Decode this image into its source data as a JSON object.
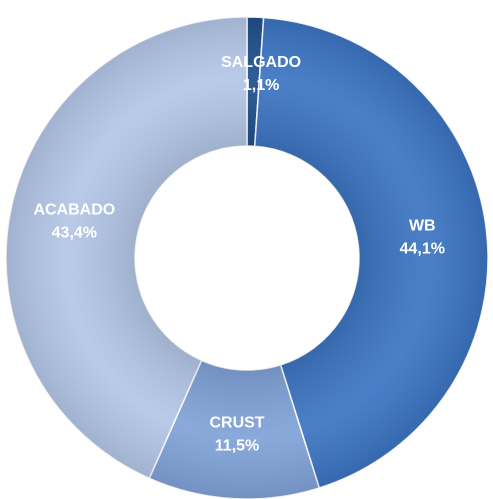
{
  "chart_data": {
    "type": "donut",
    "categories": [
      "SALGADO",
      "WB",
      "CRUST",
      "ACABADO"
    ],
    "values": [
      1.1,
      44.1,
      11.5,
      43.4
    ],
    "value_labels": [
      "1,1%",
      "44,1%",
      "11,5%",
      "43,4%"
    ],
    "colors": [
      "#1f4e8c",
      "#3b74c2",
      "#7fa2d8",
      "#b3c6e7"
    ]
  }
}
